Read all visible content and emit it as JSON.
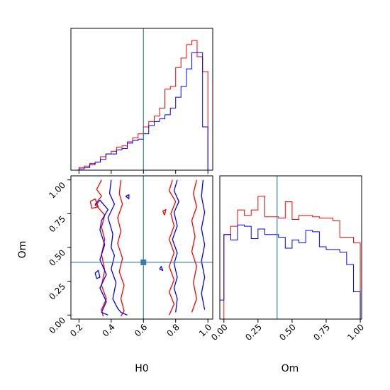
{
  "chart_data": {
    "type": "corner",
    "parameters": [
      "H0",
      "Om"
    ],
    "truth": {
      "H0": 0.6,
      "Om": 0.39
    },
    "colors": {
      "red": "#ff0000",
      "blue": "#0000ff",
      "truth": "#3a7ea8"
    },
    "panels": {
      "hist_H0": {
        "type": "histogram",
        "xlim": [
          0.15,
          1.03
        ],
        "ylim": [
          0,
          1.05
        ],
        "xticks": [
          "0.2",
          "0.4",
          "0.6",
          "0.8",
          "1.0"
        ],
        "bins": [
          0.2,
          0.233,
          0.267,
          0.3,
          0.333,
          0.367,
          0.4,
          0.433,
          0.467,
          0.5,
          0.533,
          0.567,
          0.6,
          0.633,
          0.667,
          0.7,
          0.733,
          0.767,
          0.8,
          0.833,
          0.867,
          0.9,
          0.933,
          0.967,
          1.0
        ],
        "series": [
          {
            "name": "",
            "color": "red",
            "values": [
              0.02,
              0.03,
              0.05,
              0.06,
              0.1,
              0.12,
              0.14,
              0.17,
              0.18,
              0.21,
              0.24,
              0.27,
              0.32,
              0.36,
              0.4,
              0.46,
              0.6,
              0.62,
              0.76,
              0.83,
              0.93,
              0.96,
              0.84,
              0.73
            ]
          },
          {
            "name": "",
            "color": "blue",
            "values": [
              0.01,
              0.02,
              0.04,
              0.06,
              0.08,
              0.12,
              0.12,
              0.15,
              0.16,
              0.2,
              0.22,
              0.23,
              0.27,
              0.33,
              0.36,
              0.38,
              0.41,
              0.46,
              0.54,
              0.62,
              0.75,
              0.87,
              0.87,
              0.32
            ]
          }
        ]
      },
      "hist_Om": {
        "type": "histogram",
        "xlim": [
          -0.03,
          1.01
        ],
        "ylim": [
          0,
          1.05
        ],
        "xticks": [
          "0.00",
          "0.25",
          "0.50",
          "0.75",
          "1.00"
        ],
        "bins": [
          -0.03,
          0.0,
          0.05,
          0.1,
          0.15,
          0.2,
          0.25,
          0.3,
          0.35,
          0.4,
          0.45,
          0.5,
          0.55,
          0.6,
          0.65,
          0.7,
          0.75,
          0.8,
          0.85,
          0.9,
          0.95,
          1.0
        ],
        "series": [
          {
            "name": "",
            "color": "red",
            "values": [
              0.0,
              0.62,
              0.68,
              0.8,
              0.76,
              0.8,
              0.9,
              0.75,
              0.75,
              0.74,
              0.86,
              0.73,
              0.76,
              0.76,
              0.75,
              0.74,
              0.74,
              0.72,
              0.6,
              0.6,
              0.56
            ]
          },
          {
            "name": "",
            "color": "blue",
            "values": [
              0.14,
              0.62,
              0.58,
              0.69,
              0.68,
              0.59,
              0.66,
              0.62,
              0.62,
              0.6,
              0.52,
              0.58,
              0.56,
              0.65,
              0.64,
              0.53,
              0.51,
              0.51,
              0.49,
              0.4,
              0.2
            ]
          }
        ]
      },
      "contour_H0_Om": {
        "type": "contour",
        "xlim": [
          0.15,
          1.03
        ],
        "ylim": [
          -0.03,
          1.03
        ],
        "xticks": [
          "0.2",
          "0.4",
          "0.6",
          "0.8",
          "1.0"
        ],
        "yticks": [
          "0.00",
          "0.25",
          "0.50",
          "0.75",
          "1.00"
        ],
        "xlabel": "H0",
        "ylabel": "Om",
        "contours": [
          {
            "color": "red",
            "points": [
              [
                0.34,
                1.0
              ],
              [
                0.31,
                0.93
              ],
              [
                0.34,
                0.88
              ],
              [
                0.3,
                0.82
              ],
              [
                0.36,
                0.74
              ],
              [
                0.34,
                0.65
              ],
              [
                0.36,
                0.56
              ],
              [
                0.34,
                0.45
              ],
              [
                0.36,
                0.33
              ],
              [
                0.34,
                0.22
              ],
              [
                0.37,
                0.12
              ],
              [
                0.34,
                0.04
              ],
              [
                0.35,
                -0.01
              ]
            ]
          },
          {
            "color": "red",
            "points": [
              [
                0.46,
                1.0
              ],
              [
                0.45,
                0.9
              ],
              [
                0.47,
                0.82
              ],
              [
                0.44,
                0.72
              ],
              [
                0.46,
                0.62
              ],
              [
                0.44,
                0.53
              ],
              [
                0.47,
                0.42
              ],
              [
                0.45,
                0.32
              ],
              [
                0.48,
                0.22
              ],
              [
                0.46,
                0.12
              ],
              [
                0.48,
                0.03
              ],
              [
                0.46,
                -0.01
              ]
            ]
          },
          {
            "color": "red",
            "points": [
              [
                0.78,
                1.0
              ],
              [
                0.76,
                0.92
              ],
              [
                0.8,
                0.84
              ],
              [
                0.77,
                0.75
              ],
              [
                0.79,
                0.66
              ],
              [
                0.76,
                0.56
              ],
              [
                0.79,
                0.46
              ],
              [
                0.76,
                0.36
              ],
              [
                0.79,
                0.26
              ],
              [
                0.76,
                0.17
              ],
              [
                0.79,
                0.08
              ],
              [
                0.76,
                0.0
              ]
            ]
          },
          {
            "color": "red",
            "points": [
              [
                0.93,
                1.0
              ],
              [
                0.91,
                0.9
              ],
              [
                0.93,
                0.8
              ],
              [
                0.9,
                0.7
              ],
              [
                0.92,
                0.58
              ],
              [
                0.9,
                0.47
              ],
              [
                0.93,
                0.36
              ],
              [
                0.91,
                0.24
              ],
              [
                0.93,
                0.12
              ],
              [
                0.9,
                0.02
              ]
            ]
          },
          {
            "color": "red",
            "points": [
              [
                0.27,
                0.84
              ],
              [
                0.3,
                0.86
              ],
              [
                0.32,
                0.8
              ],
              [
                0.28,
                0.79
              ],
              [
                0.27,
                0.84
              ]
            ]
          },
          {
            "color": "red",
            "points": [
              [
                0.72,
                0.77
              ],
              [
                0.74,
                0.78
              ],
              [
                0.73,
                0.74
              ],
              [
                0.72,
                0.77
              ]
            ]
          },
          {
            "color": "blue",
            "points": [
              [
                0.3,
                0.81
              ],
              [
                0.33,
                0.85
              ],
              [
                0.38,
                0.78
              ],
              [
                0.34,
                0.7
              ],
              [
                0.33,
                0.63
              ],
              [
                0.36,
                0.52
              ],
              [
                0.33,
                0.41
              ],
              [
                0.37,
                0.3
              ],
              [
                0.33,
                0.2
              ],
              [
                0.37,
                0.1
              ],
              [
                0.34,
                0.02
              ],
              [
                0.38,
                0.0
              ]
            ]
          },
          {
            "color": "blue",
            "points": [
              [
                0.4,
                1.0
              ],
              [
                0.39,
                0.9
              ],
              [
                0.42,
                0.82
              ],
              [
                0.38,
                0.72
              ],
              [
                0.41,
                0.6
              ],
              [
                0.4,
                0.5
              ],
              [
                0.42,
                0.44
              ],
              [
                0.4,
                0.34
              ],
              [
                0.43,
                0.24
              ],
              [
                0.41,
                0.12
              ],
              [
                0.44,
                0.05
              ],
              [
                0.46,
                0.02
              ],
              [
                0.5,
                0.0
              ]
            ]
          },
          {
            "color": "blue",
            "points": [
              [
                0.81,
                1.0
              ],
              [
                0.79,
                0.92
              ],
              [
                0.82,
                0.84
              ],
              [
                0.79,
                0.76
              ],
              [
                0.81,
                0.66
              ],
              [
                0.78,
                0.56
              ],
              [
                0.81,
                0.46
              ],
              [
                0.79,
                0.38
              ],
              [
                0.81,
                0.28
              ],
              [
                0.79,
                0.2
              ],
              [
                0.81,
                0.12
              ],
              [
                0.8,
                0.02
              ]
            ]
          },
          {
            "color": "blue",
            "points": [
              [
                0.97,
                1.0
              ],
              [
                0.96,
                0.88
              ],
              [
                0.98,
                0.76
              ],
              [
                0.96,
                0.64
              ],
              [
                0.98,
                0.52
              ],
              [
                0.96,
                0.4
              ],
              [
                0.98,
                0.28
              ],
              [
                0.96,
                0.16
              ],
              [
                0.98,
                0.04
              ]
            ]
          },
          {
            "color": "blue",
            "points": [
              [
                0.3,
                0.31
              ],
              [
                0.32,
                0.33
              ],
              [
                0.33,
                0.28
              ],
              [
                0.31,
                0.27
              ],
              [
                0.3,
                0.31
              ]
            ]
          },
          {
            "color": "blue",
            "points": [
              [
                0.7,
                0.34
              ],
              [
                0.71,
                0.36
              ],
              [
                0.72,
                0.33
              ],
              [
                0.7,
                0.34
              ]
            ]
          },
          {
            "color": "blue",
            "points": [
              [
                0.49,
                0.88
              ],
              [
                0.51,
                0.89
              ],
              [
                0.51,
                0.86
              ],
              [
                0.49,
                0.88
              ]
            ]
          }
        ]
      }
    }
  }
}
